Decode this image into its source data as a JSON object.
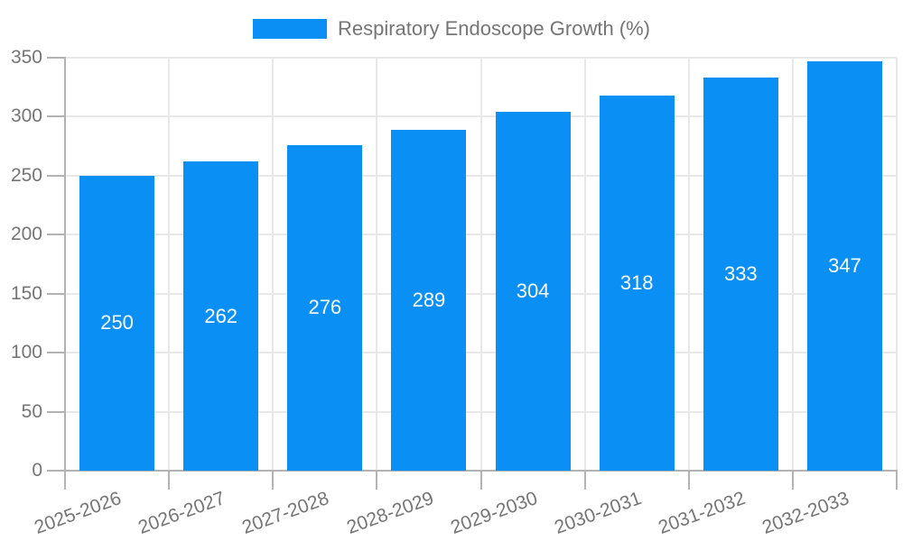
{
  "chart_data": {
    "type": "bar",
    "title": "",
    "xlabel": "",
    "ylabel": "",
    "categories": [
      "2025-2026",
      "2026-2027",
      "2027-2028",
      "2028-2029",
      "2029-2030",
      "2030-2031",
      "2031-2032",
      "2032-2033"
    ],
    "series": [
      {
        "name": "Respiratory Endoscope Growth (%)",
        "values": [
          250,
          262,
          276,
          289,
          304,
          318,
          333,
          347
        ]
      }
    ],
    "bar_value_labels": [
      "250",
      "262",
      "276",
      "289",
      "304",
      "318",
      "333",
      "347"
    ],
    "ylim": [
      0,
      350
    ],
    "ytick_step": 50,
    "yticks": [
      0,
      50,
      100,
      150,
      200,
      250,
      300,
      350
    ],
    "grid": true,
    "legend_position": "top-center",
    "colors": {
      "bar": "#0a90f5",
      "bar_label": "#ffffff",
      "axis_text": "#757575",
      "axis_line": "#b3b3b3",
      "gridline": "#e8e8e8",
      "background": "#ffffff"
    }
  }
}
